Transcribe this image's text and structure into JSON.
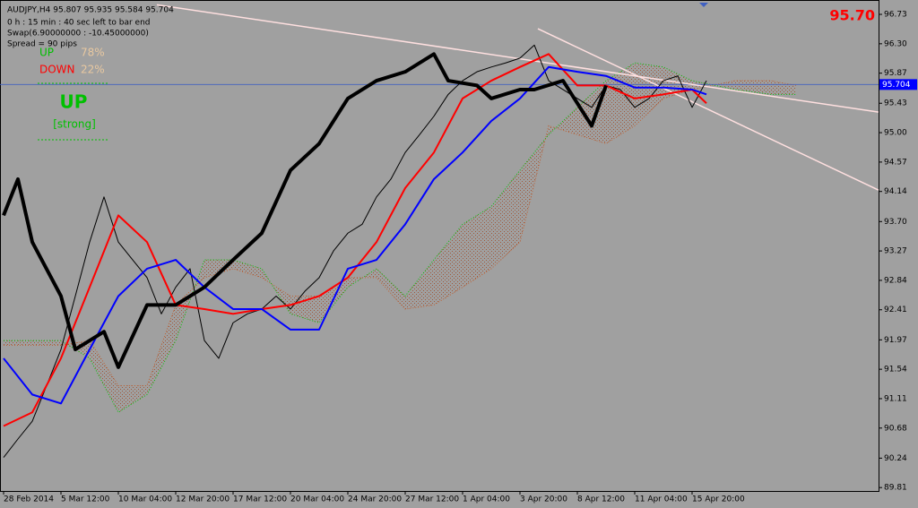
{
  "chart_data": {
    "type": "line",
    "header": "AUDJPY,H4  95.807 95.935 95.584 95.704",
    "info": [
      "0 h : 15 min : 40 sec left to bar end",
      "Swap(6.90000000 : -10.45000000)",
      "Spread = 90 pips"
    ],
    "indicator": {
      "up_label": "UP",
      "up_pct": "78%",
      "down_label": "DOWN",
      "down_pct": "22%",
      "signal": "UP",
      "strength": "[strong]"
    },
    "big_price": "95.70",
    "price_line": {
      "value": 95.704,
      "label": "95.704"
    },
    "xlim": [
      0,
      245
    ],
    "ylim": [
      89.76,
      96.94
    ],
    "xticks": [
      {
        "value": 1,
        "label": "28 Feb 2014"
      },
      {
        "value": 17,
        "label": "5 Mar 12:00"
      },
      {
        "value": 33,
        "label": "10 Mar 04:00"
      },
      {
        "value": 49,
        "label": "12 Mar 20:00"
      },
      {
        "value": 65,
        "label": "17 Mar 12:00"
      },
      {
        "value": 81,
        "label": "20 Mar 04:00"
      },
      {
        "value": 97,
        "label": "24 Mar 20:00"
      },
      {
        "value": 113,
        "label": "27 Mar 12:00"
      },
      {
        "value": 129,
        "label": "1 Apr 04:00"
      },
      {
        "value": 145,
        "label": "3 Apr 20:00"
      },
      {
        "value": 161,
        "label": "8 Apr 12:00"
      },
      {
        "value": 177,
        "label": "11 Apr 04:00"
      },
      {
        "value": 193,
        "label": "15 Apr 20:00"
      }
    ],
    "yticks": [
      {
        "value": 96.73,
        "label": "96.73"
      },
      {
        "value": 96.3,
        "label": "96.30"
      },
      {
        "value": 95.87,
        "label": "95.87"
      },
      {
        "value": 95.43,
        "label": "95.43"
      },
      {
        "value": 95.0,
        "label": "95.00"
      },
      {
        "value": 94.57,
        "label": "94.57"
      },
      {
        "value": 94.14,
        "label": "94.14"
      },
      {
        "value": 93.7,
        "label": "93.70"
      },
      {
        "value": 93.27,
        "label": "93.27"
      },
      {
        "value": 92.84,
        "label": "92.84"
      },
      {
        "value": 92.41,
        "label": "92.41"
      },
      {
        "value": 91.97,
        "label": "91.97"
      },
      {
        "value": 91.54,
        "label": "91.54"
      },
      {
        "value": 91.11,
        "label": "91.11"
      },
      {
        "value": 90.68,
        "label": "90.68"
      },
      {
        "value": 90.24,
        "label": "90.24"
      },
      {
        "value": 89.81,
        "label": "89.81"
      }
    ],
    "trendlines": [
      {
        "color": "#ffe0e0",
        "x": [
          43.75,
          245
        ],
        "y": [
          96.87,
          95.3
        ]
      },
      {
        "color": "#ffe0e0",
        "x": [
          150,
          245
        ],
        "y": [
          96.52,
          94.16
        ]
      }
    ],
    "cloud": {
      "fill": "#a05030",
      "span_a": {
        "color": "#00c000",
        "x": [
          1,
          9,
          17,
          25,
          33,
          41,
          49,
          57,
          65,
          73,
          81,
          89,
          97,
          105,
          113,
          121,
          129,
          137,
          145,
          153,
          161,
          169,
          177,
          185,
          193,
          205,
          215,
          222
        ],
        "values": [
          91.96,
          91.96,
          91.96,
          91.7,
          90.91,
          91.17,
          91.96,
          93.14,
          93.14,
          93.01,
          92.35,
          92.22,
          92.74,
          93.01,
          92.61,
          93.14,
          93.66,
          93.92,
          94.45,
          94.97,
          95.37,
          95.76,
          96.02,
          95.96,
          95.76,
          95.63,
          95.56,
          95.56
        ]
      },
      "span_b": {
        "color": "#c06030",
        "x": [
          1,
          9,
          17,
          25,
          33,
          41,
          49,
          57,
          65,
          73,
          81,
          89,
          97,
          105,
          113,
          121,
          129,
          137,
          145,
          153,
          161,
          169,
          177,
          185,
          193,
          205,
          215,
          222
        ],
        "values": [
          91.89,
          91.89,
          91.89,
          91.96,
          91.3,
          91.3,
          92.48,
          92.88,
          93.01,
          92.88,
          92.61,
          92.61,
          92.88,
          92.88,
          92.42,
          92.48,
          92.74,
          93.01,
          93.4,
          95.1,
          94.97,
          94.84,
          95.1,
          95.5,
          95.63,
          95.76,
          95.76,
          95.69
        ]
      }
    },
    "series": [
      {
        "color": "#000000",
        "width": 1,
        "x": [
          1,
          5,
          9,
          13,
          17,
          21,
          25,
          29,
          33,
          37,
          41,
          45,
          49,
          53,
          57,
          61,
          65,
          69,
          73,
          77,
          81,
          85,
          89,
          93,
          97,
          101,
          105,
          109,
          113,
          117,
          121,
          125,
          129,
          133,
          137,
          141,
          145,
          149,
          153,
          157,
          161,
          165,
          169,
          173,
          177,
          181,
          185,
          189,
          193,
          197
        ],
        "values": [
          90.25,
          90.52,
          90.78,
          91.3,
          91.83,
          92.61,
          93.4,
          94.06,
          93.4,
          93.14,
          92.88,
          92.35,
          92.74,
          93.01,
          91.96,
          91.7,
          92.22,
          92.35,
          92.42,
          92.61,
          92.42,
          92.68,
          92.88,
          93.27,
          93.53,
          93.66,
          94.06,
          94.32,
          94.71,
          94.97,
          95.24,
          95.56,
          95.76,
          95.89,
          95.96,
          96.02,
          96.09,
          96.28,
          95.76,
          95.63,
          95.5,
          95.37,
          95.69,
          95.63,
          95.37,
          95.5,
          95.76,
          95.83,
          95.37,
          95.76
        ]
      },
      {
        "color": "#ff0000",
        "width": 2,
        "x": [
          1,
          9,
          17,
          25,
          33,
          41,
          49,
          57,
          65,
          73,
          81,
          89,
          97,
          105,
          113,
          121,
          129,
          137,
          145,
          153,
          161,
          169,
          177,
          185,
          193,
          197
        ],
        "values": [
          90.71,
          90.91,
          91.7,
          92.74,
          93.79,
          93.4,
          92.48,
          92.42,
          92.35,
          92.42,
          92.48,
          92.61,
          92.88,
          93.4,
          94.19,
          94.71,
          95.5,
          95.76,
          95.96,
          96.15,
          95.69,
          95.69,
          95.5,
          95.56,
          95.63,
          95.43
        ]
      },
      {
        "color": "#0000ff",
        "width": 2,
        "x": [
          1,
          9,
          17,
          25,
          33,
          41,
          49,
          57,
          65,
          73,
          81,
          89,
          97,
          105,
          113,
          121,
          129,
          137,
          145,
          153,
          161,
          169,
          177,
          185,
          193,
          197
        ],
        "values": [
          91.7,
          91.17,
          91.04,
          91.83,
          92.61,
          93.01,
          93.14,
          92.74,
          92.42,
          92.42,
          92.12,
          92.12,
          93.01,
          93.14,
          93.66,
          94.32,
          94.71,
          95.17,
          95.5,
          95.96,
          95.89,
          95.83,
          95.66,
          95.66,
          95.63,
          95.56
        ]
      },
      {
        "color": "#000000",
        "width": 4,
        "x": [
          1,
          5,
          9,
          17,
          21,
          29,
          33,
          41,
          49,
          57,
          65,
          73,
          81,
          89,
          97,
          105,
          113,
          121,
          125,
          133,
          137,
          145,
          149,
          157,
          165,
          169
        ],
        "values": [
          93.79,
          94.32,
          93.4,
          92.61,
          91.83,
          92.09,
          91.57,
          92.48,
          92.48,
          92.74,
          93.14,
          93.53,
          94.45,
          94.84,
          95.5,
          95.76,
          95.89,
          96.15,
          95.76,
          95.69,
          95.5,
          95.63,
          95.63,
          95.76,
          95.1,
          95.69
        ]
      }
    ]
  }
}
